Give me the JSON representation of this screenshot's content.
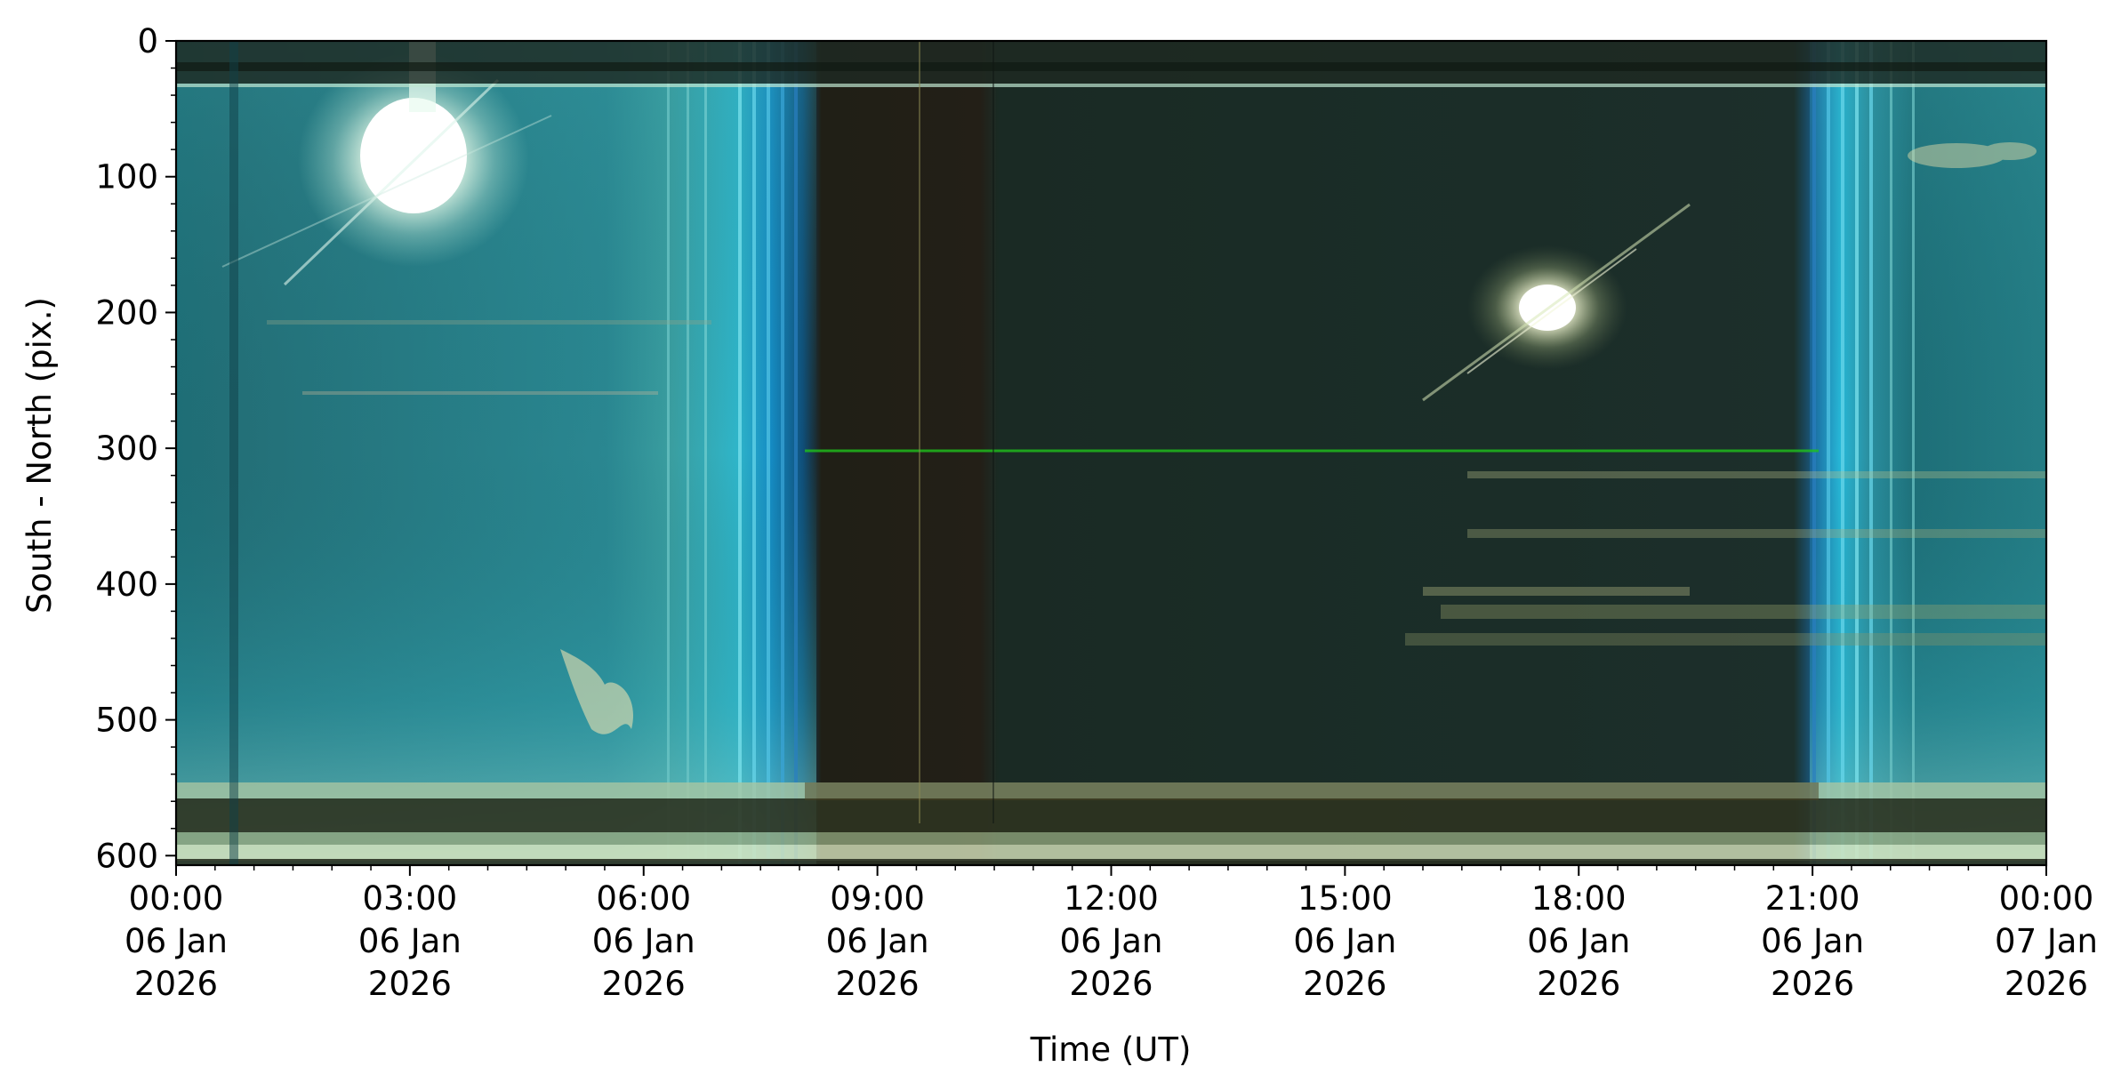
{
  "chart_data": {
    "type": "heatmap",
    "title": "",
    "xlabel": "Time (UT)",
    "ylabel": "South - North (pix.)",
    "xlim_hours": [
      0,
      24
    ],
    "ylim": [
      607,
      0
    ],
    "y_ticks": [
      0,
      100,
      200,
      300,
      400,
      500,
      600
    ],
    "y_tick_labels": [
      "0",
      "100",
      "200",
      "300",
      "400",
      "500",
      "600"
    ],
    "x_ticks_hours": [
      0,
      3,
      6,
      9,
      12,
      15,
      18,
      21,
      24
    ],
    "x_tick_labels": [
      [
        "00:00",
        "06 Jan",
        "2026"
      ],
      [
        "03:00",
        "06 Jan",
        "2026"
      ],
      [
        "06:00",
        "06 Jan",
        "2026"
      ],
      [
        "09:00",
        "06 Jan",
        "2026"
      ],
      [
        "12:00",
        "06 Jan",
        "2026"
      ],
      [
        "15:00",
        "06 Jan",
        "2026"
      ],
      [
        "18:00",
        "06 Jan",
        "2026"
      ],
      [
        "21:00",
        "06 Jan",
        "2026"
      ],
      [
        "00:00",
        "07 Jan",
        "2026"
      ]
    ],
    "grid": false,
    "legend": "none",
    "image_description_features": {
      "day_color": "#2a8a94",
      "night_color": "#1f2e26",
      "twilight_color": "#1ba2d4",
      "sun_positions": [
        {
          "time_h": 3.0,
          "y": 90
        },
        {
          "time_h": 17.6,
          "y": 197
        }
      ],
      "green_line_y": 302,
      "green_line_time_h": [
        8.1,
        21.0
      ]
    }
  }
}
